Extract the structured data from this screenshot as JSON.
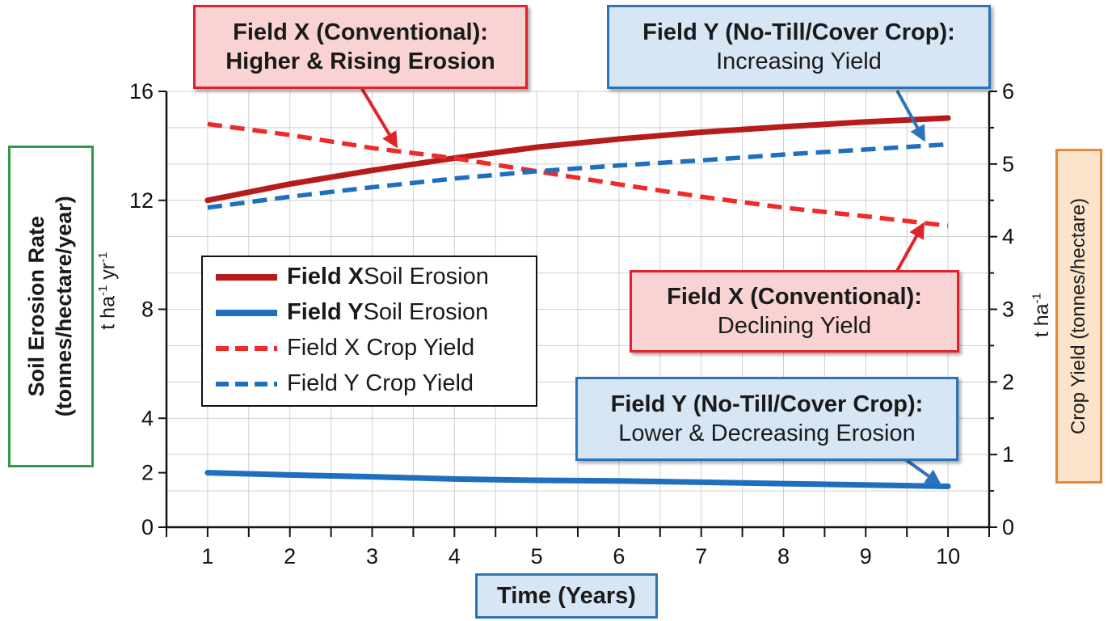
{
  "chart_data": {
    "type": "line",
    "x": [
      1,
      2,
      3,
      4,
      5,
      6,
      7,
      8,
      9,
      10
    ],
    "xlabel": "Time (Years)",
    "xlim": [
      0.5,
      10.5
    ],
    "y_left": {
      "label_line1": "Soil Erosion Rate",
      "label_line2": "(tonnes/hectare/year)",
      "unit_base": "t ha",
      "unit_exp1": "-1",
      "unit_mid": " yr",
      "unit_exp2": "-1",
      "ticks": [
        0,
        2,
        4,
        8,
        12,
        16
      ],
      "ylim": [
        0,
        16
      ]
    },
    "y_right": {
      "label": "Crop Yield (tonnes/hectare)",
      "unit_base": "t ha",
      "unit_exp": "-1",
      "ticks": [
        0,
        1,
        2,
        3,
        4,
        5,
        6
      ],
      "ylim": [
        0,
        6
      ]
    },
    "series": [
      {
        "name": "Field X Soil Erosion",
        "name_bold": "Field X",
        "name_rest": " Soil Erosion",
        "axis": "left",
        "style": "solid",
        "color": "#b71c1c",
        "values": [
          12.0,
          12.6,
          13.1,
          13.55,
          13.95,
          14.25,
          14.5,
          14.7,
          14.88,
          15.02
        ]
      },
      {
        "name": "Field Y Soil Erosion",
        "name_bold": "Field Y",
        "name_rest": " Soil Erosion",
        "axis": "left",
        "style": "solid",
        "color": "#1f6fbf",
        "values": [
          2.0,
          1.92,
          1.85,
          1.77,
          1.72,
          1.7,
          1.65,
          1.6,
          1.55,
          1.5
        ]
      },
      {
        "name": "Field X Crop Yield",
        "name_bold": "",
        "name_rest": "Field X Crop Yield",
        "axis": "right",
        "style": "dashed",
        "color": "#ee2a2a",
        "values": [
          5.55,
          5.4,
          5.22,
          5.08,
          4.9,
          4.72,
          4.55,
          4.4,
          4.28,
          4.15
        ]
      },
      {
        "name": "Field Y Crop Yield",
        "name_bold": "",
        "name_rest": "Field Y Crop Yield",
        "axis": "right",
        "style": "dashed",
        "color": "#1f6fbf",
        "values": [
          4.4,
          4.55,
          4.68,
          4.8,
          4.9,
          4.98,
          5.05,
          5.13,
          5.2,
          5.27
        ]
      }
    ],
    "grid": true,
    "legend_position": "left-middle",
    "annotations": [
      {
        "id": "x-erosion",
        "line1": "Field X (Conventional):",
        "line2": "Higher & Rising Erosion",
        "bold2": true,
        "color": "red"
      },
      {
        "id": "y-yield",
        "line1": "Field Y (No-Till/Cover Crop):",
        "line2": "Increasing Yield",
        "bold2": false,
        "color": "blue"
      },
      {
        "id": "x-yield",
        "line1": "Field X (Conventional):",
        "line2": "Declining Yield",
        "bold2": false,
        "color": "red"
      },
      {
        "id": "y-erosion",
        "line1": "Field Y (No-Till/Cover Crop):",
        "line2": "Lower & Decreasing Erosion",
        "bold2": false,
        "color": "blue"
      }
    ]
  },
  "colors": {
    "left_axis_box_border": "#2e9a48",
    "right_axis_box_border": "#e8883a",
    "right_axis_box_fill": "#fbe3cc",
    "x_label_box_border": "#2b74b8",
    "x_label_box_fill": "#d6e6f5"
  }
}
